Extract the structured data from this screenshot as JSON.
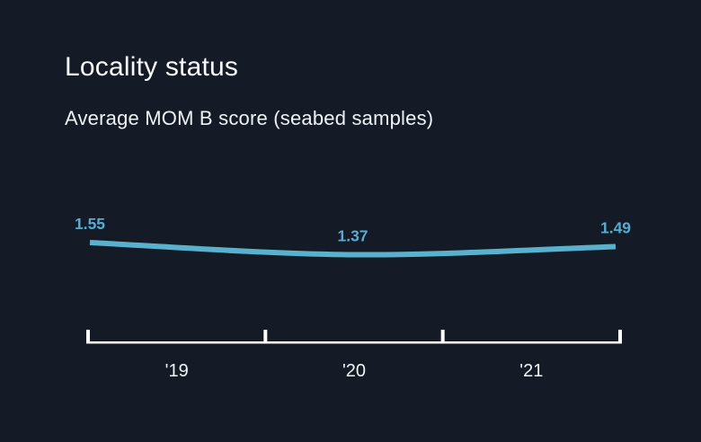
{
  "window": {
    "background": "#141b26"
  },
  "header": {
    "title": "Locality status",
    "subtitle": "Average MOM B score (seabed samples)"
  },
  "chart_data": {
    "type": "line",
    "categories": [
      "'19",
      "'20",
      "'21"
    ],
    "values": [
      1.55,
      1.37,
      1.49
    ],
    "point_labels": [
      "1.55",
      "1.37",
      "1.49"
    ],
    "title": "Locality status",
    "subtitle": "Average MOM B score (seabed samples)",
    "xlabel": "",
    "ylabel": "",
    "ylim": [
      1.3,
      1.6
    ],
    "grid": false,
    "legend": "none",
    "colors": {
      "background": "#141b26",
      "line": "#5ab1cd",
      "point_label": "#54add2",
      "axis": "#ffffff",
      "tick_label": "#f2f5f8",
      "title_text": "#f7f9fb",
      "subtitle_text": "#eef2f5"
    }
  }
}
